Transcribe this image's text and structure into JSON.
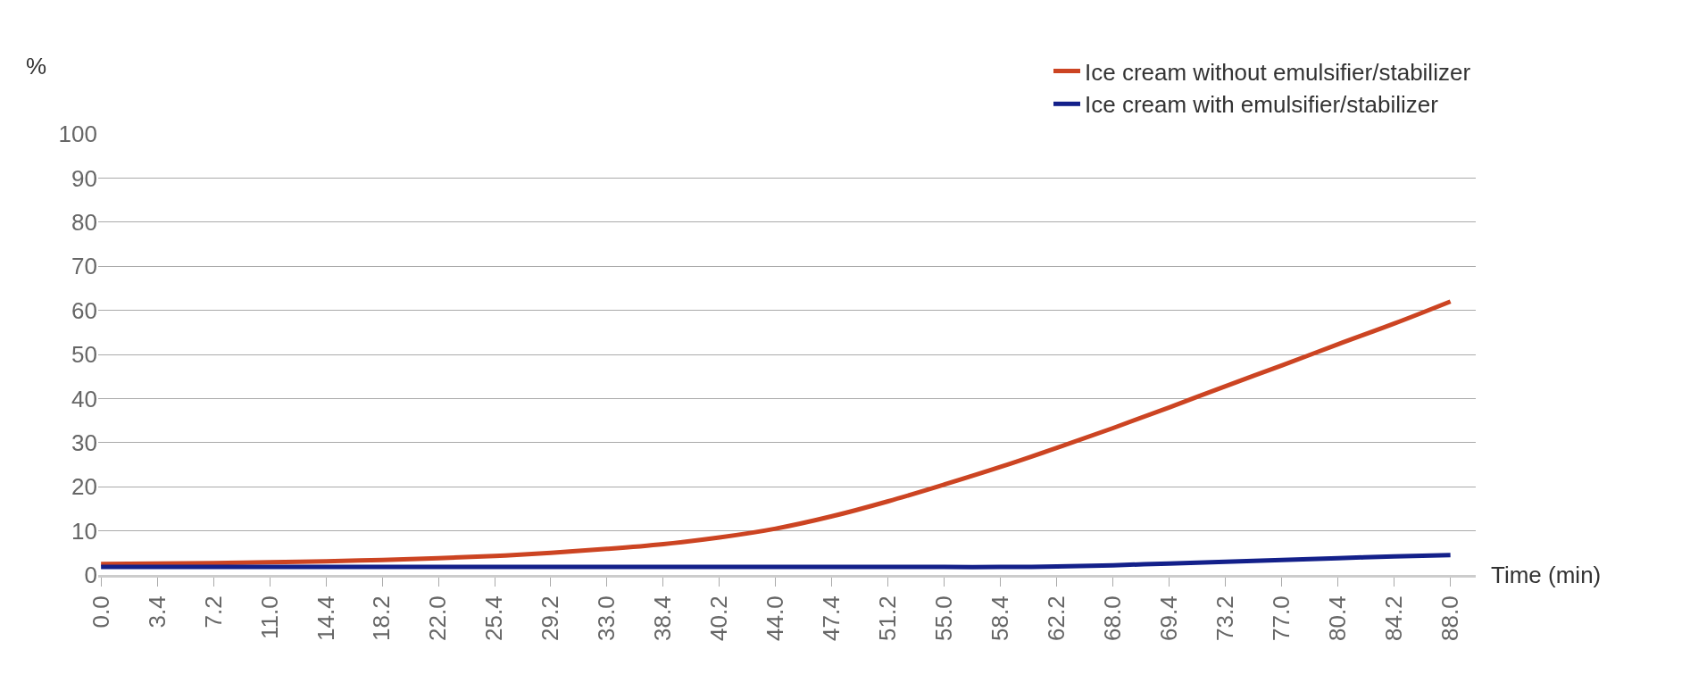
{
  "chart_data": {
    "type": "line",
    "ylabel": "%",
    "xlabel": "Time (min)",
    "categories": [
      "0.0",
      "3.4",
      "7.2",
      "11.0",
      "14.4",
      "18.2",
      "22.0",
      "25.4",
      "29.2",
      "33.0",
      "38.4",
      "40.2",
      "44.0",
      "47.4",
      "51.2",
      "55.0",
      "58.4",
      "62.2",
      "68.0",
      "69.4",
      "73.2",
      "77.0",
      "80.4",
      "84.2",
      "88.0"
    ],
    "series": [
      {
        "name": "Ice cream without emulsifier/stabilizer",
        "color": "#cc4422",
        "values": [
          2.5,
          2.6,
          2.7,
          2.9,
          3.1,
          3.4,
          3.8,
          4.3,
          5.0,
          5.9,
          7.0,
          8.5,
          10.5,
          13.3,
          16.7,
          20.5,
          24.5,
          28.8,
          33.3,
          38,
          42.8,
          47.5,
          52.3,
          57,
          62
        ]
      },
      {
        "name": "Ice cream with emulsifier/stabilizer",
        "color": "#13208a",
        "values": [
          1.8,
          1.8,
          1.8,
          1.8,
          1.8,
          1.8,
          1.8,
          1.8,
          1.8,
          1.8,
          1.8,
          1.8,
          1.8,
          1.8,
          1.8,
          1.8,
          1.8,
          1.9,
          2.2,
          2.6,
          3.0,
          3.4,
          3.8,
          4.2,
          4.5
        ]
      }
    ],
    "ylim": [
      0,
      100
    ],
    "yticks": [
      0,
      10,
      20,
      30,
      40,
      50,
      60,
      70,
      80,
      90,
      100
    ],
    "grid": "y",
    "legend": "top right",
    "marker": "none",
    "line_style": "solid"
  }
}
